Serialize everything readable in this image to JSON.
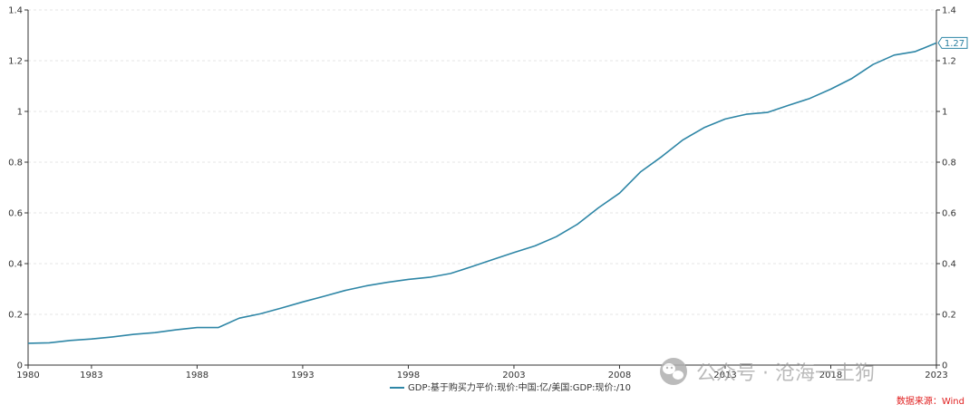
{
  "chart_data": {
    "type": "line",
    "x": [
      1980,
      1981,
      1982,
      1983,
      1984,
      1985,
      1986,
      1987,
      1988,
      1989,
      1990,
      1991,
      1992,
      1993,
      1994,
      1995,
      1996,
      1997,
      1998,
      1999,
      2000,
      2001,
      2002,
      2003,
      2004,
      2005,
      2006,
      2007,
      2008,
      2009,
      2010,
      2011,
      2012,
      2013,
      2014,
      2015,
      2016,
      2017,
      2018,
      2019,
      2020,
      2021,
      2022,
      2023
    ],
    "series": [
      {
        "name": "GDP:基于购买力平价:现价:中国:亿/美国:GDP:现价:/10",
        "color": "#2e86a6",
        "values": [
          0.086,
          0.088,
          0.097,
          0.103,
          0.111,
          0.121,
          0.128,
          0.139,
          0.148,
          0.148,
          0.185,
          0.202,
          0.225,
          0.249,
          0.271,
          0.294,
          0.312,
          0.326,
          0.338,
          0.346,
          0.361,
          0.388,
          0.416,
          0.444,
          0.47,
          0.506,
          0.555,
          0.62,
          0.678,
          0.762,
          0.822,
          0.888,
          0.936,
          0.97,
          0.989,
          0.996,
          1.024,
          1.051,
          1.088,
          1.13,
          1.185,
          1.222,
          1.236,
          1.27
        ]
      }
    ],
    "x_ticks": [
      "1980",
      "1983",
      "1988",
      "1993",
      "1998",
      "2003",
      "2008",
      "2013",
      "2018",
      "2023"
    ],
    "y_ticks": [
      "0",
      "0.2",
      "0.4",
      "0.6",
      "0.8",
      "1",
      "1.2",
      "1.4"
    ],
    "y_ticks_right": [
      "0",
      "0.2",
      "0.4",
      "0.6",
      "0.8",
      "1",
      "1.2",
      "1.4"
    ],
    "xlim": [
      1980,
      2023
    ],
    "ylim": [
      0,
      1.4
    ],
    "grid": true,
    "legend_position": "bottom",
    "last_value_label": "1.27"
  },
  "source_label": "数据来源：Wind",
  "watermark": "公众号 · 沧海一土狗",
  "watermark_icon": "wechat-icon"
}
